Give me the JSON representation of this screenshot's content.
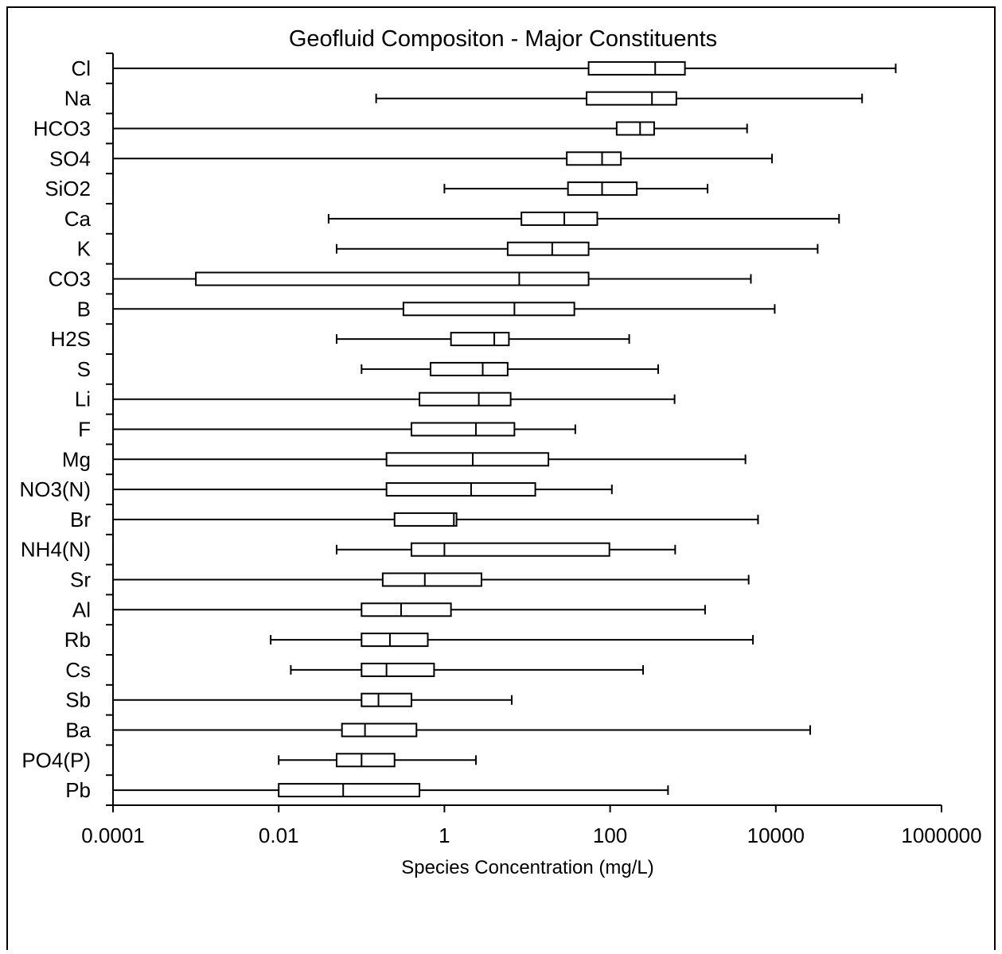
{
  "chart_data": {
    "type": "boxplot",
    "orientation": "horizontal",
    "title": "Geofluid Compositon - Major Constituents",
    "xlabel": "Species Concentration (mg/L)",
    "ylabel": "",
    "xscale": "log",
    "xlim": [
      0.0001,
      1000000
    ],
    "xticks": [
      {
        "value": 0.0001,
        "label": "0.0001"
      },
      {
        "value": 0.01,
        "label": "0.01"
      },
      {
        "value": 1,
        "label": "1"
      },
      {
        "value": 100,
        "label": "100"
      },
      {
        "value": 10000,
        "label": "10000"
      },
      {
        "value": 1000000,
        "label": "1000000"
      }
    ],
    "grid": false,
    "legend": "none",
    "colors": {
      "box_fill": "#ffffff",
      "stroke": "#000000",
      "frame": "#000000"
    },
    "categories": [
      "Cl",
      "Na",
      "HCO3",
      "SO4",
      "SiO2",
      "Ca",
      "K",
      "CO3",
      "B",
      "H2S",
      "S",
      "Li",
      "F",
      "Mg",
      "NO3(N)",
      "Br",
      "NH4(N)",
      "Sr",
      "Al",
      "Rb",
      "Cs",
      "Sb",
      "Ba",
      "PO4(P)",
      "Pb"
    ],
    "boxes": [
      {
        "label": "Cl",
        "min": 0.0001,
        "q1": 55,
        "median": 350,
        "q3": 800,
        "max": 280000
      },
      {
        "label": "Na",
        "min": 0.15,
        "q1": 52,
        "median": 320,
        "q3": 630,
        "max": 110000
      },
      {
        "label": "HCO3",
        "min": 0.0001,
        "q1": 120,
        "median": 230,
        "q3": 340,
        "max": 4500
      },
      {
        "label": "SO4",
        "min": 0.0001,
        "q1": 30,
        "median": 80,
        "q3": 135,
        "max": 9000
      },
      {
        "label": "SiO2",
        "min": 1,
        "q1": 31,
        "median": 80,
        "q3": 210,
        "max": 1500
      },
      {
        "label": "Ca",
        "min": 0.04,
        "q1": 8.5,
        "median": 28,
        "q3": 70,
        "max": 58000
      },
      {
        "label": "K",
        "min": 0.05,
        "q1": 5.8,
        "median": 20,
        "q3": 55,
        "max": 32000
      },
      {
        "label": "CO3",
        "min": 0.0001,
        "q1": 0.001,
        "median": 8,
        "q3": 55,
        "max": 5000
      },
      {
        "label": "B",
        "min": 0.0001,
        "q1": 0.32,
        "median": 7,
        "q3": 37,
        "max": 9700
      },
      {
        "label": "H2S",
        "min": 0.05,
        "q1": 1.2,
        "median": 4,
        "q3": 6,
        "max": 170
      },
      {
        "label": "S",
        "min": 0.1,
        "q1": 0.68,
        "median": 2.9,
        "q3": 5.8,
        "max": 380
      },
      {
        "label": "Li",
        "min": 0.0001,
        "q1": 0.5,
        "median": 2.6,
        "q3": 6.3,
        "max": 600
      },
      {
        "label": "F",
        "min": 0.0001,
        "q1": 0.4,
        "median": 2.4,
        "q3": 7,
        "max": 38
      },
      {
        "label": "Mg",
        "min": 0.0001,
        "q1": 0.2,
        "median": 2.2,
        "q3": 18,
        "max": 4300
      },
      {
        "label": "NO3(N)",
        "min": 0.0001,
        "q1": 0.2,
        "median": 2.1,
        "q3": 12.5,
        "max": 105
      },
      {
        "label": "Br",
        "min": 0.0001,
        "q1": 0.25,
        "median": 1.3,
        "q3": 1.4,
        "max": 6100
      },
      {
        "label": "NH4(N)",
        "min": 0.05,
        "q1": 0.4,
        "median": 1,
        "q3": 98,
        "max": 610
      },
      {
        "label": "Sr",
        "min": 0.0001,
        "q1": 0.18,
        "median": 0.58,
        "q3": 2.8,
        "max": 4700
      },
      {
        "label": "Al",
        "min": 0.0001,
        "q1": 0.1,
        "median": 0.3,
        "q3": 1.2,
        "max": 1400
      },
      {
        "label": "Rb",
        "min": 0.008,
        "q1": 0.1,
        "median": 0.22,
        "q3": 0.63,
        "max": 5300
      },
      {
        "label": "Cs",
        "min": 0.014,
        "q1": 0.1,
        "median": 0.2,
        "q3": 0.75,
        "max": 250
      },
      {
        "label": "Sb",
        "min": 0.0001,
        "q1": 0.1,
        "median": 0.16,
        "q3": 0.4,
        "max": 6.5
      },
      {
        "label": "Ba",
        "min": 0.0001,
        "q1": 0.058,
        "median": 0.11,
        "q3": 0.46,
        "max": 26000
      },
      {
        "label": "PO4(P)",
        "min": 0.01,
        "q1": 0.05,
        "median": 0.1,
        "q3": 0.25,
        "max": 2.4
      },
      {
        "label": "Pb",
        "min": 0.0001,
        "q1": 0.01,
        "median": 0.06,
        "q3": 0.5,
        "max": 500
      }
    ]
  }
}
